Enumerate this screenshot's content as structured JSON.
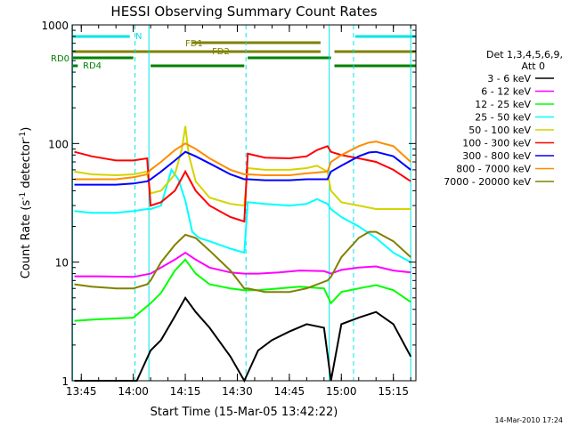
{
  "chart_data": {
    "type": "line",
    "title": "HESSI Observing Summary Count Rates",
    "xlabel": "Start Time (15-Mar-05 13:42:22)",
    "ylabel_main": "Count Rate (s",
    "ylabel_sup1": "-1",
    "ylabel_mid": " detector",
    "ylabel_sup2": "-1",
    "ylabel_end": ")",
    "yscale": "log",
    "ylim": [
      1,
      1000
    ],
    "xlim": [
      "13:42:22",
      "15:21:30"
    ],
    "x_ticks": [
      "13:45",
      "14:00",
      "14:15",
      "14:30",
      "14:45",
      "15:00",
      "15:15"
    ],
    "y_ticks": [
      "1",
      "10",
      "100",
      "1000"
    ],
    "legend_title": [
      "Det 1,3,4,5,6,9,",
      "Att 0"
    ],
    "legend_position": "right",
    "footer": "14-Mar-2010 17:24",
    "colors": {
      "axis": "#000000",
      "night": "#00e5e5",
      "flare": "#808000",
      "decimation": "#008000",
      "saa": "#00e5e5"
    },
    "flags": {
      "night": {
        "label": "N",
        "intervals": [
          [
            "13:42:22",
            "13:59:00"
          ],
          [
            "15:04:00",
            "15:21:30"
          ]
        ]
      },
      "fd1": {
        "label": "FD1",
        "intervals": [
          [
            "14:17:00",
            "14:54:00"
          ]
        ]
      },
      "fd2": {
        "label": "FD2",
        "intervals": [
          [
            "13:42:22",
            "14:54:00"
          ],
          [
            "14:58:00",
            "15:21:30"
          ]
        ]
      },
      "rd0": {
        "label": "RD0",
        "intervals": [
          [
            "13:42:22",
            "14:00:00"
          ],
          [
            "14:33:00",
            "14:57:00"
          ]
        ]
      },
      "rd4": {
        "label": "RD4",
        "intervals": [
          [
            "13:42:22",
            "13:44:00"
          ],
          [
            "14:05:00",
            "14:32:00"
          ],
          [
            "14:58:00",
            "15:21:30"
          ]
        ]
      }
    },
    "vlines": [
      "13:42:30",
      "14:00:30",
      "14:04:30",
      "14:32:30",
      "14:56:30",
      "15:03:30",
      "15:20:00"
    ],
    "series": [
      {
        "name": "3 - 6 keV",
        "color": "#000000",
        "x": [
          "13:43",
          "14:01",
          "14:05",
          "14:08",
          "14:12",
          "14:15",
          "14:18",
          "14:22",
          "14:28",
          "14:32",
          "14:36",
          "14:40",
          "14:45",
          "14:50",
          "14:55",
          "14:57",
          "15:00",
          "15:05",
          "15:10",
          "15:15",
          "15:20"
        ],
        "y": [
          1.0,
          1.0,
          1.8,
          2.2,
          3.5,
          5.0,
          3.8,
          2.8,
          1.6,
          1.0,
          1.8,
          2.2,
          2.6,
          3.0,
          2.8,
          1.0,
          3.0,
          3.4,
          3.8,
          3.0,
          1.6
        ]
      },
      {
        "name": "6 - 12 keV",
        "color": "#ff00ff",
        "x": [
          "13:43",
          "13:50",
          "14:00",
          "14:05",
          "14:08",
          "14:12",
          "14:15",
          "14:18",
          "14:22",
          "14:28",
          "14:32",
          "14:36",
          "14:42",
          "14:48",
          "14:55",
          "14:57",
          "15:00",
          "15:05",
          "15:10",
          "15:15",
          "15:20"
        ],
        "y": [
          7.6,
          7.6,
          7.5,
          8.0,
          9.0,
          10.5,
          12.0,
          10.5,
          9.0,
          8.2,
          8.0,
          8.0,
          8.2,
          8.5,
          8.4,
          8.0,
          8.6,
          9.0,
          9.2,
          8.5,
          8.2
        ]
      },
      {
        "name": "12 - 25 keV",
        "color": "#00ff00",
        "x": [
          "13:43",
          "13:50",
          "14:00",
          "14:05",
          "14:08",
          "14:12",
          "14:15",
          "14:18",
          "14:22",
          "14:28",
          "14:32",
          "14:36",
          "14:42",
          "14:48",
          "14:55",
          "14:57",
          "15:00",
          "15:05",
          "15:10",
          "15:15",
          "15:20"
        ],
        "y": [
          3.2,
          3.3,
          3.4,
          4.5,
          5.5,
          8.5,
          10.5,
          8.0,
          6.5,
          6.0,
          5.8,
          5.8,
          6.0,
          6.2,
          6.0,
          4.5,
          5.6,
          6.0,
          6.4,
          5.8,
          4.6
        ]
      },
      {
        "name": "25 - 50 keV",
        "color": "#00ffff",
        "x": [
          "13:43",
          "13:48",
          "13:55",
          "14:00",
          "14:04",
          "14:05",
          "14:08",
          "14:11",
          "14:13",
          "14:15",
          "14:17",
          "14:19",
          "14:22",
          "14:28",
          "14:32",
          "14:33",
          "14:38",
          "14:45",
          "14:50",
          "14:53",
          "14:56",
          "14:57",
          "15:00",
          "15:05",
          "15:10",
          "15:15",
          "15:20"
        ],
        "y": [
          27,
          26,
          26,
          27,
          28,
          28,
          30,
          60,
          50,
          33,
          18,
          16,
          15,
          13,
          12,
          32,
          31,
          30,
          31,
          34,
          31,
          28,
          24,
          20,
          16,
          12,
          10
        ]
      },
      {
        "name": "50 - 100 keV",
        "color": "#d4d400",
        "x": [
          "13:43",
          "13:48",
          "13:55",
          "14:00",
          "14:04",
          "14:05",
          "14:08",
          "14:12",
          "14:14",
          "14:15",
          "14:16",
          "14:18",
          "14:22",
          "14:28",
          "14:32",
          "14:33",
          "14:38",
          "14:45",
          "14:50",
          "14:53",
          "14:56",
          "14:57",
          "15:00",
          "15:05",
          "15:10",
          "15:15",
          "15:20"
        ],
        "y": [
          58,
          55,
          54,
          55,
          58,
          38,
          40,
          55,
          90,
          140,
          80,
          48,
          35,
          31,
          30,
          62,
          60,
          60,
          62,
          65,
          58,
          40,
          32,
          30,
          28,
          28,
          28
        ]
      },
      {
        "name": "100 - 300 keV",
        "color": "#ff0000",
        "x": [
          "13:43",
          "13:48",
          "13:55",
          "14:00",
          "14:04",
          "14:05",
          "14:08",
          "14:12",
          "14:15",
          "14:18",
          "14:22",
          "14:28",
          "14:32",
          "14:33",
          "14:38",
          "14:45",
          "14:50",
          "14:53",
          "14:56",
          "14:57",
          "15:00",
          "15:05",
          "15:08",
          "15:10",
          "15:15",
          "15:20"
        ],
        "y": [
          85,
          78,
          72,
          72,
          75,
          30,
          32,
          40,
          58,
          40,
          30,
          24,
          22,
          82,
          76,
          75,
          78,
          88,
          95,
          85,
          80,
          75,
          72,
          70,
          60,
          48
        ]
      },
      {
        "name": "300 - 800 keV",
        "color": "#0000ff",
        "x": [
          "13:43",
          "13:48",
          "13:55",
          "14:00",
          "14:04",
          "14:05",
          "14:08",
          "14:12",
          "14:15",
          "14:18",
          "14:22",
          "14:28",
          "14:32",
          "14:33",
          "14:38",
          "14:45",
          "14:50",
          "14:56",
          "14:57",
          "15:00",
          "15:05",
          "15:08",
          "15:10",
          "15:15",
          "15:20"
        ],
        "y": [
          45,
          45,
          45,
          46,
          48,
          50,
          58,
          72,
          85,
          78,
          68,
          55,
          50,
          50,
          49,
          49,
          50,
          50,
          58,
          65,
          78,
          84,
          85,
          78,
          60
        ]
      },
      {
        "name": "800 - 7000 keV",
        "color": "#ff8c00",
        "x": [
          "13:43",
          "13:48",
          "13:55",
          "14:00",
          "14:04",
          "14:05",
          "14:08",
          "14:12",
          "14:15",
          "14:18",
          "14:22",
          "14:28",
          "14:32",
          "14:33",
          "14:38",
          "14:45",
          "14:50",
          "14:56",
          "14:57",
          "15:00",
          "15:05",
          "15:08",
          "15:10",
          "15:15",
          "15:20"
        ],
        "y": [
          50,
          50,
          50,
          52,
          55,
          60,
          70,
          88,
          100,
          90,
          75,
          60,
          55,
          55,
          54,
          54,
          56,
          58,
          70,
          80,
          95,
          102,
          104,
          95,
          70
        ]
      },
      {
        "name": "7000 - 20000 keV",
        "color": "#808000",
        "x": [
          "13:43",
          "13:48",
          "13:55",
          "14:00",
          "14:04",
          "14:05",
          "14:08",
          "14:12",
          "14:15",
          "14:18",
          "14:22",
          "14:28",
          "14:32",
          "14:33",
          "14:38",
          "14:45",
          "14:50",
          "14:56",
          "14:57",
          "15:00",
          "15:05",
          "15:08",
          "15:10",
          "15:15",
          "15:20"
        ],
        "y": [
          6.5,
          6.2,
          6.0,
          6.0,
          6.5,
          7.0,
          10.0,
          14.0,
          17.0,
          16.0,
          12.5,
          8.5,
          6.0,
          6.0,
          5.6,
          5.6,
          6.0,
          7.0,
          7.5,
          11.0,
          16.0,
          18.0,
          18.0,
          15.0,
          11.0
        ]
      }
    ]
  }
}
